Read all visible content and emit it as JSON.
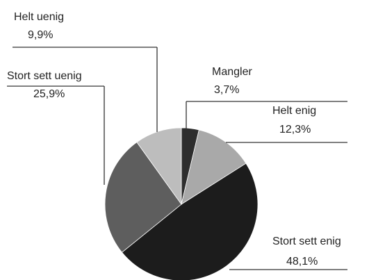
{
  "chart_data": {
    "type": "pie",
    "categories": [
      "Mangler",
      "Helt enig",
      "Stort sett enig",
      "Stort sett uenig",
      "Helt uenig"
    ],
    "values": [
      3.7,
      12.3,
      48.1,
      25.9,
      9.9
    ],
    "value_labels": [
      "3,7%",
      "12,3%",
      "48,1%",
      "25,9%",
      "9,9%"
    ],
    "colors": [
      "#2e2e2e",
      "#a9a9a9",
      "#1c1c1c",
      "#5e5e5e",
      "#bdbdbd"
    ]
  }
}
